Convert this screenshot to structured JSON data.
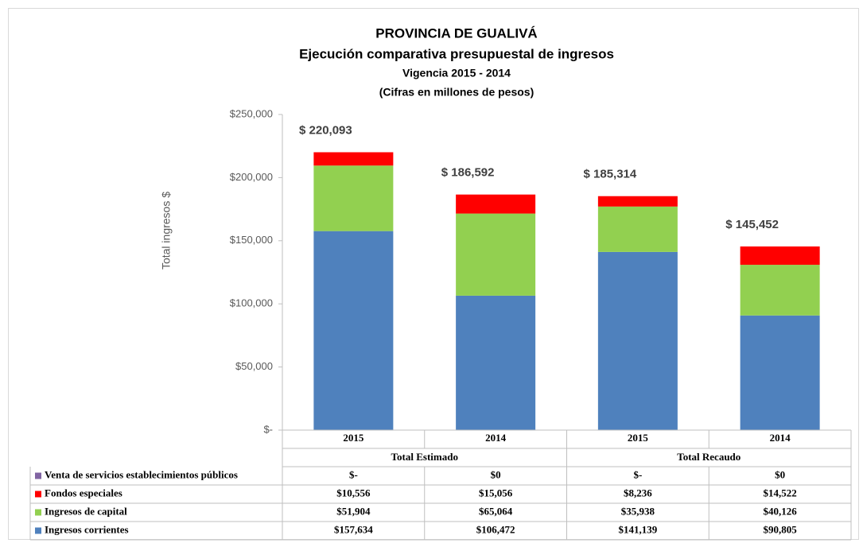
{
  "chart_data": {
    "type": "stacked_bar",
    "title": "PROVINCIA DE GUALIVÁ",
    "subtitle": "Ejecución comparativa presupuestal de ingresos",
    "subtitle2": "Vigencia 2015 - 2014",
    "subtitle3": "(Cifras en millones de pesos)",
    "y_label": "Total ingresos $",
    "categories": [
      "2015",
      "2014",
      "2015",
      "2014"
    ],
    "groups": [
      "Total Estimado",
      "Total Recaudo"
    ],
    "series": [
      {
        "name": "Venta de servicios establecimientos públicos",
        "color": "#8064a2",
        "values": [
          0,
          0,
          0,
          0
        ],
        "value_labels": [
          "$-",
          "$0",
          "$-",
          "$0"
        ]
      },
      {
        "name": "Fondos especiales",
        "color": "#ff0000",
        "values": [
          10556,
          15056,
          8236,
          14522
        ],
        "value_labels": [
          "$10,556",
          "$15,056",
          "$8,236",
          "$14,522"
        ]
      },
      {
        "name": "Ingresos de capital",
        "color": "#92d050",
        "values": [
          51904,
          65064,
          35938,
          40126
        ],
        "value_labels": [
          "$51,904",
          "$65,064",
          "$35,938",
          "$40,126"
        ]
      },
      {
        "name": "Ingresos corrientes",
        "color": "#4f81bd",
        "values": [
          157634,
          106472,
          141139,
          90805
        ],
        "value_labels": [
          "$157,634",
          "$106,472",
          "$141,139",
          "$90,805"
        ]
      }
    ],
    "totals": [
      220093,
      186592,
      185314,
      145452
    ],
    "total_labels": [
      "$ 220,093",
      "$ 186,592",
      "$ 185,314",
      "$ 145,452"
    ],
    "ylim": [
      0,
      250000
    ],
    "yticks": [
      {
        "value": 0,
        "label": "$-"
      },
      {
        "value": 50000,
        "label": "$50,000"
      },
      {
        "value": 100000,
        "label": "$100,000"
      },
      {
        "value": 150000,
        "label": "$150,000"
      },
      {
        "value": 200000,
        "label": "$200,000"
      },
      {
        "value": 250000,
        "label": "$250,000"
      }
    ],
    "grid": false
  }
}
